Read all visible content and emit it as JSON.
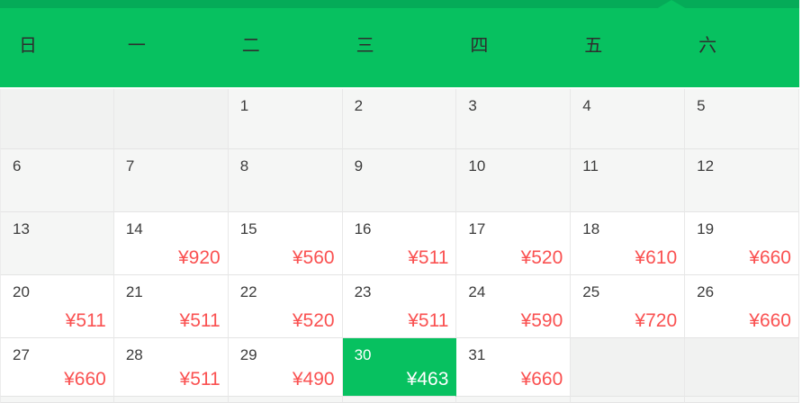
{
  "calendar": {
    "weekdays": [
      "日",
      "一",
      "二",
      "三",
      "四",
      "五",
      "六"
    ],
    "weeks": [
      [
        {
          "day": "",
          "price": "",
          "state": "empty"
        },
        {
          "day": "",
          "price": "",
          "state": "empty"
        },
        {
          "day": "1",
          "price": "",
          "state": "disabled"
        },
        {
          "day": "2",
          "price": "",
          "state": "disabled"
        },
        {
          "day": "3",
          "price": "",
          "state": "disabled"
        },
        {
          "day": "4",
          "price": "",
          "state": "disabled"
        },
        {
          "day": "5",
          "price": "",
          "state": "disabled"
        }
      ],
      [
        {
          "day": "6",
          "price": "",
          "state": "disabled"
        },
        {
          "day": "7",
          "price": "",
          "state": "disabled"
        },
        {
          "day": "8",
          "price": "",
          "state": "disabled"
        },
        {
          "day": "9",
          "price": "",
          "state": "disabled"
        },
        {
          "day": "10",
          "price": "",
          "state": "disabled"
        },
        {
          "day": "11",
          "price": "",
          "state": "disabled"
        },
        {
          "day": "12",
          "price": "",
          "state": "disabled"
        }
      ],
      [
        {
          "day": "13",
          "price": "",
          "state": "disabled"
        },
        {
          "day": "14",
          "price": "¥920",
          "state": "available"
        },
        {
          "day": "15",
          "price": "¥560",
          "state": "available"
        },
        {
          "day": "16",
          "price": "¥511",
          "state": "available"
        },
        {
          "day": "17",
          "price": "¥520",
          "state": "available"
        },
        {
          "day": "18",
          "price": "¥610",
          "state": "available"
        },
        {
          "day": "19",
          "price": "¥660",
          "state": "available"
        }
      ],
      [
        {
          "day": "20",
          "price": "¥511",
          "state": "available"
        },
        {
          "day": "21",
          "price": "¥511",
          "state": "available"
        },
        {
          "day": "22",
          "price": "¥520",
          "state": "available"
        },
        {
          "day": "23",
          "price": "¥511",
          "state": "available"
        },
        {
          "day": "24",
          "price": "¥590",
          "state": "available"
        },
        {
          "day": "25",
          "price": "¥720",
          "state": "available"
        },
        {
          "day": "26",
          "price": "¥660",
          "state": "available"
        }
      ],
      [
        {
          "day": "27",
          "price": "¥660",
          "state": "available"
        },
        {
          "day": "28",
          "price": "¥511",
          "state": "available"
        },
        {
          "day": "29",
          "price": "¥490",
          "state": "available"
        },
        {
          "day": "30",
          "price": "¥463",
          "state": "selected"
        },
        {
          "day": "31",
          "price": "¥660",
          "state": "available"
        },
        {
          "day": "",
          "price": "",
          "state": "empty"
        },
        {
          "day": "",
          "price": "",
          "state": "empty"
        }
      ]
    ],
    "selected_date": "30",
    "selected_price": "¥463",
    "theme": {
      "header_green": "#07C160",
      "header_top_strip_green": "#05AB58",
      "selected_green": "#07C160",
      "price_red": "#FA5151",
      "disabled_cell_gray": "#f5f6f5",
      "selected_text": "#FFFFFF"
    }
  }
}
